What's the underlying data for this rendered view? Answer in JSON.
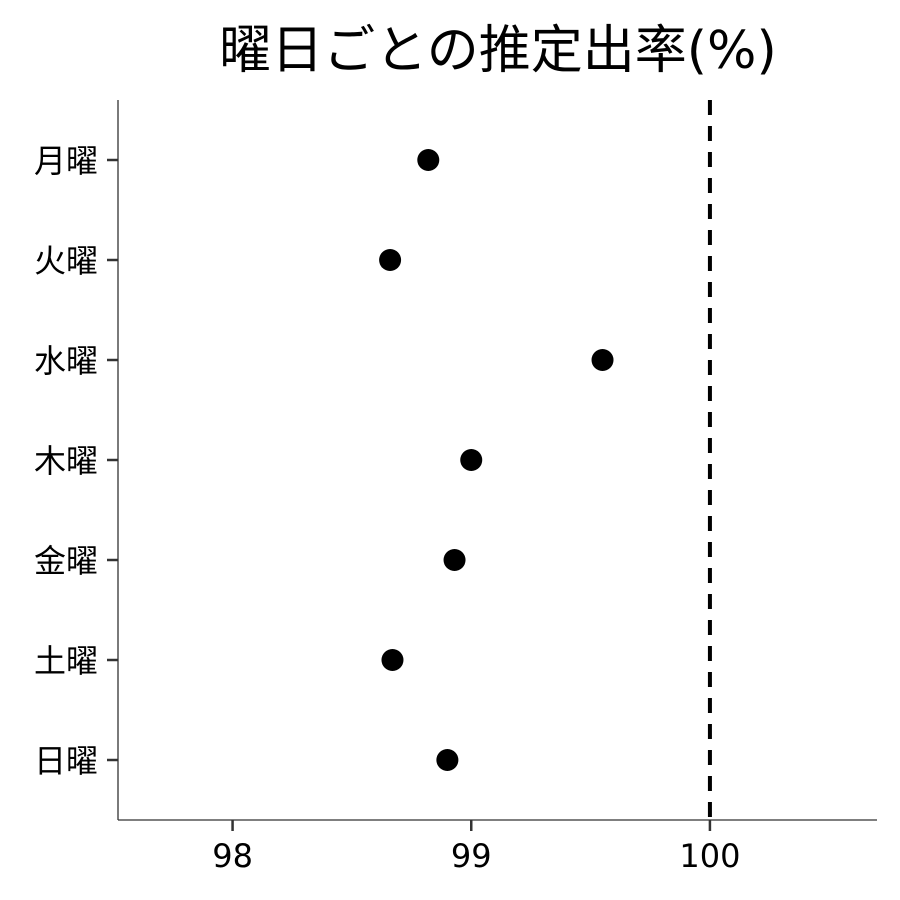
{
  "chart_data": {
    "type": "scatter",
    "title": "曜日ごとの推定出率(%)",
    "xlabel": "",
    "ylabel": "",
    "categories": [
      "月曜",
      "火曜",
      "水曜",
      "木曜",
      "金曜",
      "土曜",
      "日曜"
    ],
    "values": [
      98.82,
      98.66,
      99.55,
      99.0,
      98.93,
      98.67,
      98.9
    ],
    "xlim": [
      97.52,
      100.7
    ],
    "xticks": [
      98,
      99,
      100
    ],
    "reference_line": {
      "x": 100,
      "style": "dashed"
    },
    "grid": false,
    "point_color": "#000000"
  }
}
